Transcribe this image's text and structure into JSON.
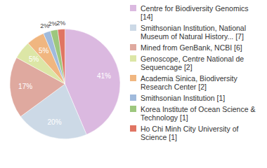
{
  "chart_data": {
    "type": "pie",
    "categories": [
      "Centre for Biodiversity Genomics [14]",
      "Smithsonian Institution, National Museum of Natural History... [7]",
      "Mined from GenBank, NCBI [6]",
      "Genoscope, Centre National de Sequencage [2]",
      "Academia Sinica, Biodiversity Research Center [2]",
      "Smithsonian Institution [1]",
      "Korea Institute of Ocean Science & Technology [1]",
      "Ho Chi Minh City University of Science [1]"
    ],
    "values": [
      41,
      20,
      17,
      5,
      5,
      2,
      2,
      2
    ],
    "value_labels": [
      "41%",
      "20%",
      "17%",
      "5%",
      "5%",
      "2%",
      "2%",
      "2%"
    ],
    "colors": [
      "#dbb9e0",
      "#ccd9e6",
      "#dfa99f",
      "#dce6a6",
      "#f0b680",
      "#a0badc",
      "#9dc77e",
      "#e07563"
    ],
    "data_labels": true,
    "legend": "right"
  }
}
